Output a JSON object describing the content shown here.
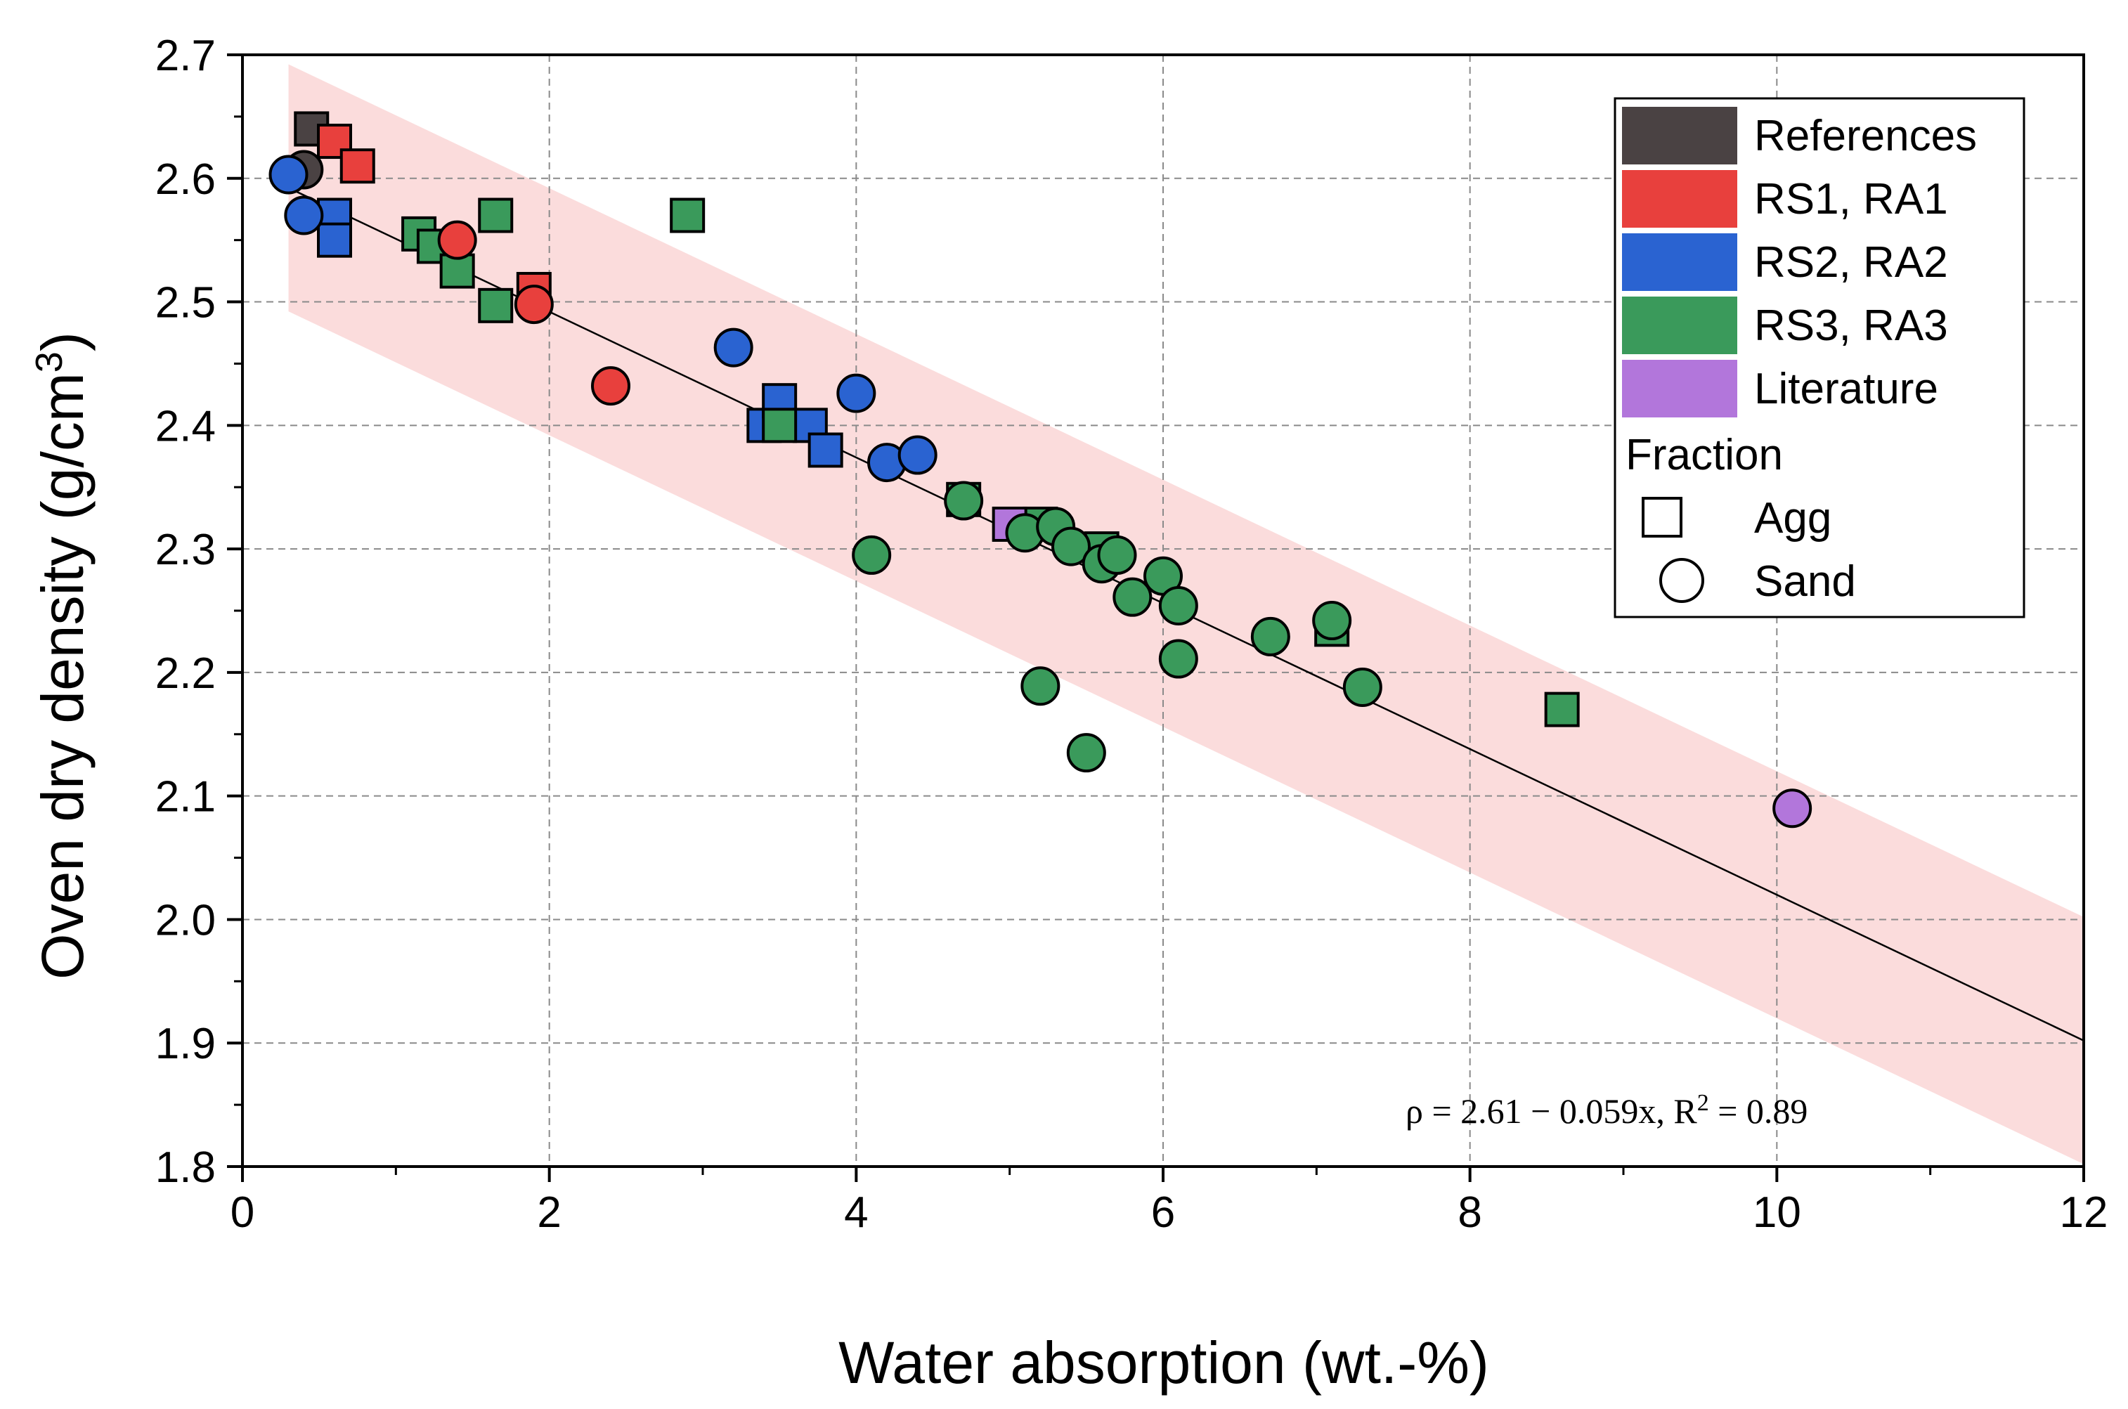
{
  "chart_data": {
    "type": "scatter",
    "xlabel": "Water absorption (wt.-%)",
    "ylabel": "Oven dry density (g/cm",
    "ylabel_sup": "3",
    "ylabel_close": ")",
    "xlim": [
      0,
      12
    ],
    "ylim": [
      1.8,
      2.7
    ],
    "x_ticks": [
      0,
      2,
      4,
      6,
      8,
      10,
      12
    ],
    "x_tick_labels": [
      "0",
      "2",
      "4",
      "6",
      "8",
      "10",
      "12"
    ],
    "y_ticks": [
      1.8,
      1.9,
      2.0,
      2.1,
      2.2,
      2.3,
      2.4,
      2.5,
      2.6,
      2.7
    ],
    "y_tick_labels": [
      "1.8",
      "1.9",
      "2.0",
      "2.1",
      "2.2",
      "2.3",
      "2.4",
      "2.5",
      "2.6",
      "2.7"
    ],
    "grid": true,
    "legend_position": "top-right",
    "fit": {
      "intercept": 2.61,
      "slope": -0.059,
      "x_range": [
        0.3,
        12
      ],
      "band_halfwidth": 0.1,
      "label_main": "ρ = 2.61 − 0.059x, R",
      "label_sup": "2",
      "label_end": " = 0.89"
    },
    "series": [
      {
        "name": "References",
        "color": "#4a4243",
        "points": [
          {
            "x": 0.45,
            "y": 2.64,
            "fraction": "Agg"
          },
          {
            "x": 0.4,
            "y": 2.607,
            "fraction": "Sand"
          }
        ]
      },
      {
        "name": "RS1, RA1",
        "color": "#e8403d",
        "points": [
          {
            "x": 0.6,
            "y": 2.63,
            "fraction": "Agg"
          },
          {
            "x": 0.75,
            "y": 2.61,
            "fraction": "Agg"
          },
          {
            "x": 1.9,
            "y": 2.51,
            "fraction": "Agg"
          },
          {
            "x": 1.4,
            "y": 2.55,
            "fraction": "Sand"
          },
          {
            "x": 1.9,
            "y": 2.498,
            "fraction": "Sand"
          },
          {
            "x": 2.4,
            "y": 2.432,
            "fraction": "Sand"
          }
        ]
      },
      {
        "name": "RS2, RA2",
        "color": "#2a63d1",
        "points": [
          {
            "x": 0.6,
            "y": 2.57,
            "fraction": "Agg"
          },
          {
            "x": 0.6,
            "y": 2.55,
            "fraction": "Agg"
          },
          {
            "x": 3.4,
            "y": 2.4,
            "fraction": "Agg"
          },
          {
            "x": 3.5,
            "y": 2.42,
            "fraction": "Agg"
          },
          {
            "x": 3.7,
            "y": 2.4,
            "fraction": "Agg"
          },
          {
            "x": 3.8,
            "y": 2.38,
            "fraction": "Agg"
          },
          {
            "x": 0.3,
            "y": 2.603,
            "fraction": "Sand"
          },
          {
            "x": 0.4,
            "y": 2.57,
            "fraction": "Sand"
          },
          {
            "x": 3.2,
            "y": 2.463,
            "fraction": "Sand"
          },
          {
            "x": 4.0,
            "y": 2.426,
            "fraction": "Sand"
          },
          {
            "x": 4.2,
            "y": 2.37,
            "fraction": "Sand"
          },
          {
            "x": 4.4,
            "y": 2.376,
            "fraction": "Sand"
          }
        ]
      },
      {
        "name": "RS3, RA3",
        "color": "#3a9a5b",
        "points": [
          {
            "x": 1.15,
            "y": 2.555,
            "fraction": "Agg"
          },
          {
            "x": 1.25,
            "y": 2.545,
            "fraction": "Agg"
          },
          {
            "x": 1.4,
            "y": 2.525,
            "fraction": "Agg"
          },
          {
            "x": 1.65,
            "y": 2.57,
            "fraction": "Agg"
          },
          {
            "x": 1.65,
            "y": 2.497,
            "fraction": "Agg"
          },
          {
            "x": 2.9,
            "y": 2.57,
            "fraction": "Agg"
          },
          {
            "x": 3.5,
            "y": 2.4,
            "fraction": "Agg"
          },
          {
            "x": 4.7,
            "y": 2.34,
            "fraction": "Agg"
          },
          {
            "x": 5.2,
            "y": 2.32,
            "fraction": "Agg"
          },
          {
            "x": 5.6,
            "y": 2.3,
            "fraction": "Agg"
          },
          {
            "x": 7.1,
            "y": 2.235,
            "fraction": "Agg"
          },
          {
            "x": 8.6,
            "y": 2.17,
            "fraction": "Agg"
          },
          {
            "x": 4.7,
            "y": 2.339,
            "fraction": "Sand"
          },
          {
            "x": 4.1,
            "y": 2.295,
            "fraction": "Sand"
          },
          {
            "x": 5.1,
            "y": 2.313,
            "fraction": "Sand"
          },
          {
            "x": 5.3,
            "y": 2.318,
            "fraction": "Sand"
          },
          {
            "x": 5.4,
            "y": 2.302,
            "fraction": "Sand"
          },
          {
            "x": 5.6,
            "y": 2.288,
            "fraction": "Sand"
          },
          {
            "x": 5.7,
            "y": 2.295,
            "fraction": "Sand"
          },
          {
            "x": 5.8,
            "y": 2.261,
            "fraction": "Sand"
          },
          {
            "x": 6.0,
            "y": 2.278,
            "fraction": "Sand"
          },
          {
            "x": 6.1,
            "y": 2.254,
            "fraction": "Sand"
          },
          {
            "x": 6.1,
            "y": 2.211,
            "fraction": "Sand"
          },
          {
            "x": 6.7,
            "y": 2.229,
            "fraction": "Sand"
          },
          {
            "x": 7.1,
            "y": 2.242,
            "fraction": "Sand"
          },
          {
            "x": 7.3,
            "y": 2.188,
            "fraction": "Sand"
          },
          {
            "x": 5.2,
            "y": 2.189,
            "fraction": "Sand"
          },
          {
            "x": 5.5,
            "y": 2.135,
            "fraction": "Sand"
          }
        ]
      },
      {
        "name": "Literature",
        "color": "#b276db",
        "points": [
          {
            "x": 5.0,
            "y": 2.32,
            "fraction": "Agg"
          },
          {
            "x": 10.1,
            "y": 2.09,
            "fraction": "Sand"
          }
        ]
      }
    ],
    "legend": {
      "fraction_title": "Fraction",
      "fraction_items": [
        {
          "label": "Agg",
          "marker": "square"
        },
        {
          "label": "Sand",
          "marker": "circle"
        }
      ]
    }
  }
}
